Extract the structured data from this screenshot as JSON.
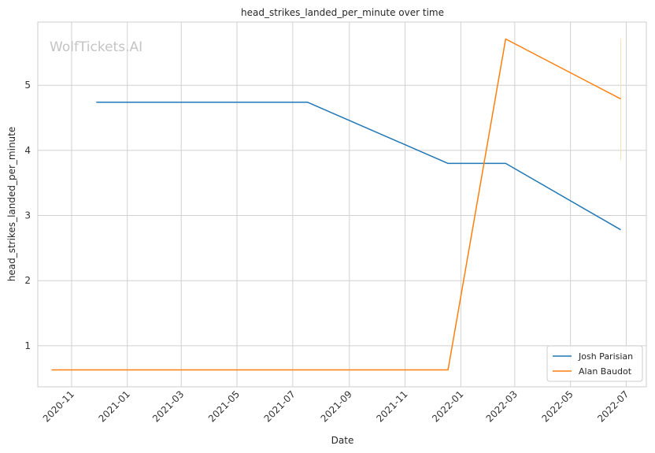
{
  "chart_data": {
    "type": "line",
    "title": "head_strikes_landed_per_minute over time",
    "xlabel": "Date",
    "ylabel": "head_strikes_landed_per_minute",
    "watermark": "WolfTickets.AI",
    "x_ticks": [
      "2020-11",
      "2021-01",
      "2021-03",
      "2021-05",
      "2021-07",
      "2021-09",
      "2021-11",
      "2022-01",
      "2022-03",
      "2022-05",
      "2022-07"
    ],
    "y_ticks": [
      1,
      2,
      3,
      4,
      5
    ],
    "xlim": [
      "2020-09-25",
      "2022-07-23"
    ],
    "ylim": [
      0.37,
      5.97
    ],
    "grid": true,
    "legend_position": "lower-right",
    "series": [
      {
        "name": "Josh Parisian",
        "color": "#1f77b4",
        "points": [
          {
            "x": "2020-11-28",
            "y": 4.74
          },
          {
            "x": "2021-07-17",
            "y": 4.74
          },
          {
            "x": "2021-12-18",
            "y": 3.8
          },
          {
            "x": "2022-02-19",
            "y": 3.8
          },
          {
            "x": "2022-06-25",
            "y": 2.78
          }
        ]
      },
      {
        "name": "Alan Baudot",
        "color": "#ff7f0e",
        "points": [
          {
            "x": "2020-10-10",
            "y": 0.63
          },
          {
            "x": "2021-12-18",
            "y": 0.63
          },
          {
            "x": "2022-02-19",
            "y": 5.71
          },
          {
            "x": "2022-06-25",
            "y": 4.79
          }
        ],
        "range_bar": {
          "x": "2022-06-25",
          "y_low": 3.85,
          "y_high": 5.71,
          "color": "#ffe0b0"
        }
      }
    ]
  }
}
